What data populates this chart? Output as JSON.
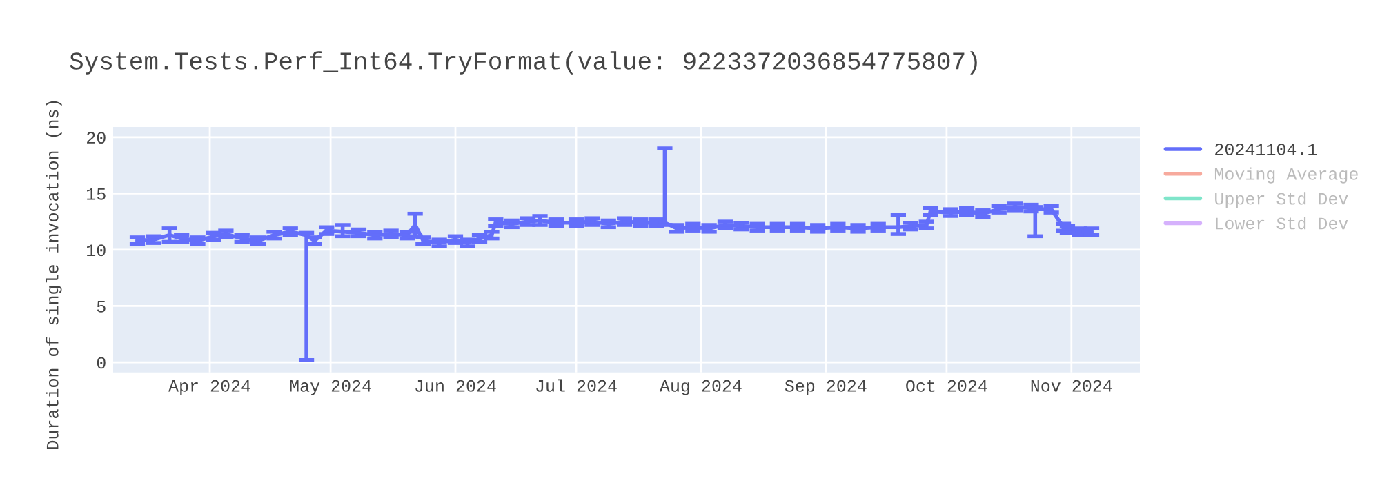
{
  "chart_data": {
    "type": "line",
    "title": "System.Tests.Perf_Int64.TryFormat(value: 9223372036854775807)",
    "ylabel": "Duration of single invocation (ns)",
    "x": [
      "2024-03-14",
      "2024-03-18",
      "2024-03-22",
      "2024-03-25",
      "2024-03-29",
      "2024-04-02",
      "2024-04-05",
      "2024-04-09",
      "2024-04-13",
      "2024-04-17",
      "2024-04-21",
      "2024-04-25",
      "2024-04-27",
      "2024-04-30",
      "2024-05-04",
      "2024-05-08",
      "2024-05-12",
      "2024-05-16",
      "2024-05-20",
      "2024-05-22",
      "2024-05-24",
      "2024-05-28",
      "2024-06-01",
      "2024-06-04",
      "2024-06-07",
      "2024-06-10",
      "2024-06-11",
      "2024-06-15",
      "2024-06-19",
      "2024-06-22",
      "2024-06-26",
      "2024-07-01",
      "2024-07-05",
      "2024-07-09",
      "2024-07-13",
      "2024-07-17",
      "2024-07-21",
      "2024-07-23",
      "2024-07-26",
      "2024-07-30",
      "2024-08-03",
      "2024-08-07",
      "2024-08-11",
      "2024-08-15",
      "2024-08-20",
      "2024-08-25",
      "2024-08-30",
      "2024-09-04",
      "2024-09-09",
      "2024-09-14",
      "2024-09-19",
      "2024-09-22",
      "2024-09-26",
      "2024-09-27",
      "2024-10-02",
      "2024-10-06",
      "2024-10-10",
      "2024-10-14",
      "2024-10-18",
      "2024-10-22",
      "2024-10-23",
      "2024-10-27",
      "2024-10-30",
      "2024-10-31",
      "2024-11-03",
      "2024-11-06"
    ],
    "series": [
      {
        "name": "20241104.1",
        "color": "#636efa",
        "values": [
          10.8,
          10.9,
          11.3,
          11.0,
          10.8,
          11.2,
          11.4,
          11.0,
          10.8,
          11.3,
          11.6,
          11.3,
          10.8,
          11.7,
          11.6,
          11.5,
          11.3,
          11.4,
          11.3,
          12.2,
          10.8,
          10.6,
          10.9,
          10.6,
          11.0,
          11.3,
          12.4,
          12.3,
          12.5,
          12.6,
          12.4,
          12.4,
          12.5,
          12.3,
          12.5,
          12.4,
          12.4,
          12.4,
          11.9,
          12.0,
          11.9,
          12.2,
          12.1,
          12.0,
          12.0,
          12.0,
          11.9,
          12.0,
          11.9,
          12.0,
          12.0,
          12.1,
          12.2,
          13.4,
          13.3,
          13.4,
          13.2,
          13.6,
          13.8,
          13.7,
          13.6,
          13.6,
          12.0,
          11.8,
          11.6,
          11.6
        ],
        "errors": [
          0.3,
          0.3,
          0.6,
          0.3,
          0.3,
          0.3,
          0.3,
          0.3,
          0.3,
          0.3,
          0.3,
          [
            0.2,
            11.5
          ],
          0.3,
          0.3,
          [
            11.2,
            12.2
          ],
          0.3,
          0.3,
          0.3,
          0.3,
          [
            11.2,
            13.2
          ],
          0.3,
          0.3,
          0.3,
          0.3,
          0.3,
          0.3,
          0.3,
          0.3,
          0.3,
          [
            12.2,
            13.0
          ],
          0.3,
          0.3,
          0.3,
          0.3,
          0.3,
          0.3,
          0.3,
          [
            12.2,
            19.0
          ],
          0.3,
          0.3,
          0.3,
          0.3,
          0.3,
          0.3,
          0.3,
          0.3,
          0.3,
          0.3,
          0.3,
          0.3,
          [
            11.4,
            13.1
          ],
          0.3,
          0.3,
          0.3,
          0.3,
          0.3,
          0.3,
          0.3,
          0.3,
          0.3,
          [
            11.2,
            13.8
          ],
          0.3,
          0.3,
          0.3,
          0.3,
          0.3
        ]
      },
      {
        "name": "Moving Average",
        "color": "#f7aa9d",
        "values": [
          null,
          null,
          null,
          null,
          null,
          null,
          null,
          null,
          null,
          null,
          null,
          null,
          null,
          null,
          null,
          null,
          null,
          null,
          null,
          null,
          null,
          null,
          null,
          null,
          null,
          null,
          null,
          null,
          null,
          null,
          null,
          null,
          null,
          null,
          null,
          null,
          null,
          null,
          null,
          null,
          null,
          null,
          null,
          null,
          null,
          null,
          null,
          null,
          null,
          null,
          null,
          null,
          null,
          null,
          null,
          null,
          null,
          null,
          null,
          null,
          null,
          null,
          null,
          null,
          null,
          null
        ]
      },
      {
        "name": "Upper Std Dev",
        "color": "#7fe5ca",
        "values": [
          null,
          null,
          null,
          null,
          null,
          null,
          null,
          null,
          null,
          null,
          null,
          null,
          null,
          null,
          null,
          null,
          null,
          null,
          null,
          null,
          null,
          null,
          null,
          null,
          null,
          null,
          null,
          null,
          null,
          null,
          null,
          null,
          null,
          null,
          null,
          null,
          null,
          null,
          null,
          null,
          null,
          null,
          null,
          null,
          null,
          null,
          null,
          null,
          null,
          null,
          null,
          null,
          null,
          null,
          null,
          null,
          null,
          null,
          null,
          null,
          null,
          null,
          null,
          null,
          null,
          null
        ]
      },
      {
        "name": "Lower Std Dev",
        "color": "#d5b1fc",
        "values": [
          null,
          null,
          null,
          null,
          null,
          null,
          null,
          null,
          null,
          null,
          null,
          null,
          null,
          null,
          null,
          null,
          null,
          null,
          null,
          null,
          null,
          null,
          null,
          null,
          null,
          null,
          null,
          null,
          null,
          null,
          null,
          null,
          null,
          null,
          null,
          null,
          null,
          null,
          null,
          null,
          null,
          null,
          null,
          null,
          null,
          null,
          null,
          null,
          null,
          null,
          null,
          null,
          null,
          null,
          null,
          null,
          null,
          null,
          null,
          null,
          null,
          null,
          null,
          null,
          null,
          null
        ]
      }
    ],
    "xlim": [
      "2024-03-08",
      "2024-11-18"
    ],
    "xticks": [
      {
        "value": "2024-04-01",
        "label": "Apr 2024"
      },
      {
        "value": "2024-05-01",
        "label": "May 2024"
      },
      {
        "value": "2024-06-01",
        "label": "Jun 2024"
      },
      {
        "value": "2024-07-01",
        "label": "Jul 2024"
      },
      {
        "value": "2024-08-01",
        "label": "Aug 2024"
      },
      {
        "value": "2024-09-01",
        "label": "Sep 2024"
      },
      {
        "value": "2024-10-01",
        "label": "Oct 2024"
      },
      {
        "value": "2024-11-01",
        "label": "Nov 2024"
      }
    ],
    "ylim": [
      -0.9,
      20.9
    ],
    "yticks": [
      0,
      5,
      10,
      15,
      20
    ],
    "grid": true,
    "legend": "top right",
    "line_style": "solid"
  }
}
